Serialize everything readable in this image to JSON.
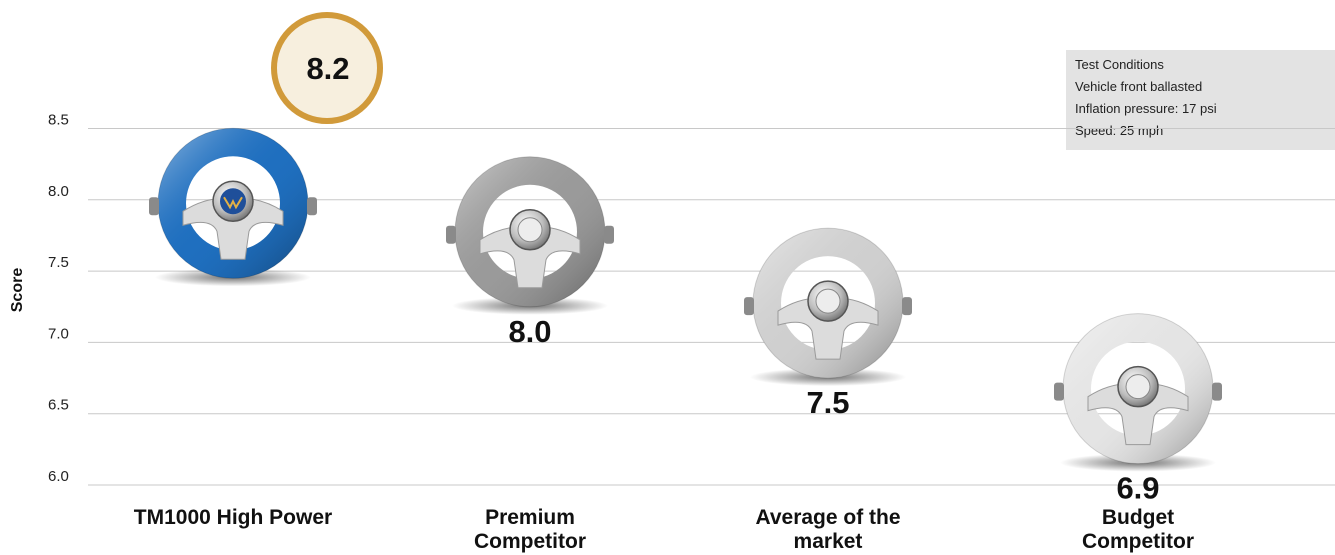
{
  "chart_data": {
    "type": "bar",
    "ylabel": "Score",
    "ylim": [
      6.0,
      9.0
    ],
    "yticks": [
      "6.0",
      "6.5",
      "7.0",
      "7.5",
      "8.0",
      "8.5"
    ],
    "grid": true,
    "categories": [
      "TM1000 High Power",
      "Premium Competitor",
      "Average of the market",
      "Budget Competitor"
    ],
    "values": [
      8.2,
      8.0,
      7.5,
      6.9
    ],
    "value_labels": [
      "8.2",
      "8.0",
      "7.5",
      "6.9"
    ],
    "marker": "steering-wheel",
    "wheel_colors": [
      "#1f6fbf",
      "#9a9a9a",
      "#cfcfcf",
      "#e4e4e4"
    ],
    "highlight_color": "#d19a3a"
  },
  "notes": {
    "title": "Test Conditions",
    "lines": [
      "Vehicle front ballasted",
      "Inflation pressure: 17 psi",
      "Speed: 25 mph"
    ]
  }
}
